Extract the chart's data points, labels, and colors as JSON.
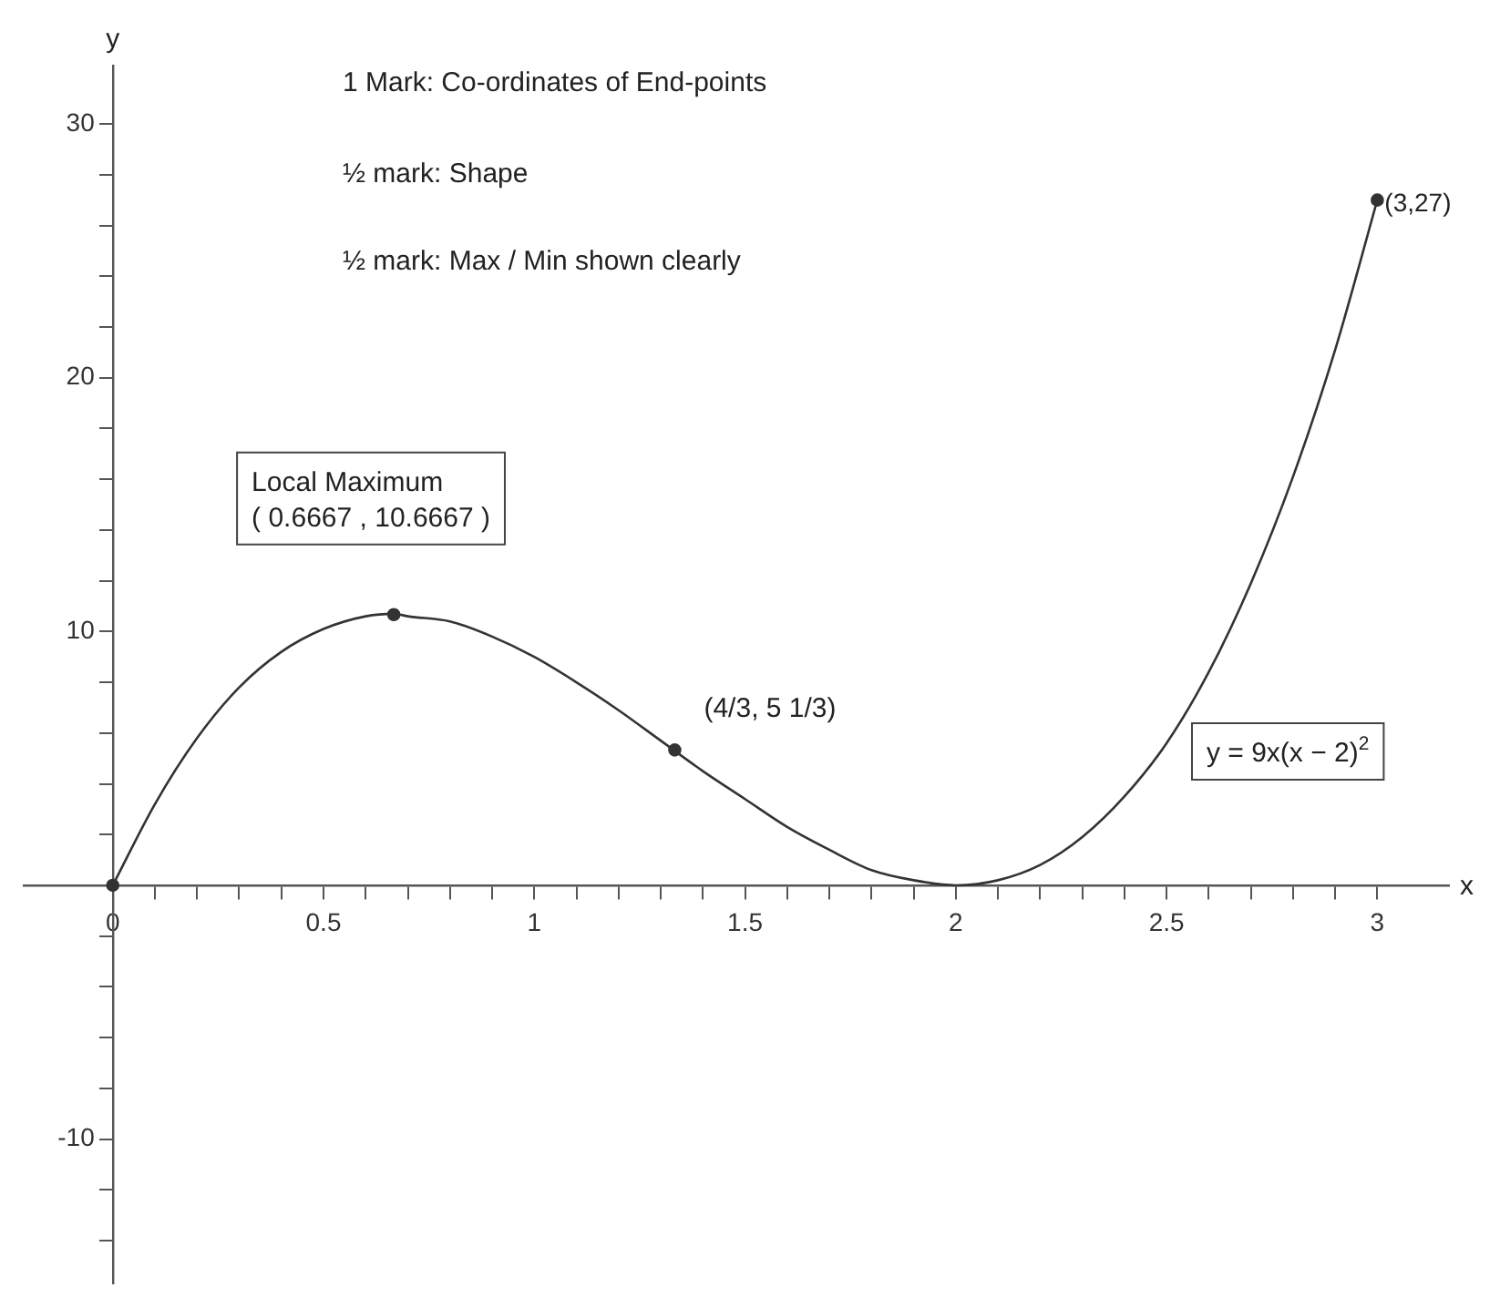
{
  "chart_data": {
    "type": "line",
    "xlabel": "x",
    "ylabel": "y",
    "xlim": [
      -0.21,
      3.17
    ],
    "ylim": [
      -15.7,
      32.3
    ],
    "xticks": [
      {
        "value": 0,
        "label": "0"
      },
      {
        "value": 0.1,
        "label": null
      },
      {
        "value": 0.2,
        "label": null
      },
      {
        "value": 0.3,
        "label": null
      },
      {
        "value": 0.4,
        "label": null
      },
      0.5,
      {
        "value": 0.6,
        "label": null
      },
      {
        "value": 0.7,
        "label": null
      },
      {
        "value": 0.8,
        "label": null
      },
      {
        "value": 0.9,
        "label": null
      },
      1,
      {
        "value": 1.1,
        "label": null
      },
      {
        "value": 1.2,
        "label": null
      },
      {
        "value": 1.3,
        "label": null
      },
      {
        "value": 1.4,
        "label": null
      },
      1.5,
      {
        "value": 1.6,
        "label": null
      },
      {
        "value": 1.7,
        "label": null
      },
      {
        "value": 1.8,
        "label": null
      },
      {
        "value": 1.9,
        "label": null
      },
      2,
      {
        "value": 2.1,
        "label": null
      },
      {
        "value": 2.2,
        "label": null
      },
      {
        "value": 2.3,
        "label": null
      },
      {
        "value": 2.4,
        "label": null
      },
      2.5,
      {
        "value": 2.6,
        "label": null
      },
      {
        "value": 2.7,
        "label": null
      },
      {
        "value": 2.8,
        "label": null
      },
      {
        "value": 2.9,
        "label": null
      },
      3
    ],
    "yticks": [
      {
        "value": -14,
        "label": null
      },
      {
        "value": -12,
        "label": null
      },
      -10,
      {
        "value": -8,
        "label": null
      },
      {
        "value": -6,
        "label": null
      },
      {
        "value": -4,
        "label": null
      },
      {
        "value": -2,
        "label": null
      },
      {
        "value": 2,
        "label": null
      },
      {
        "value": 4,
        "label": null
      },
      {
        "value": 6,
        "label": null
      },
      {
        "value": 8,
        "label": null
      },
      10,
      {
        "value": 12,
        "label": null
      },
      {
        "value": 14,
        "label": null
      },
      {
        "value": 16,
        "label": null
      },
      {
        "value": 18,
        "label": null
      },
      20,
      {
        "value": 22,
        "label": null
      },
      {
        "value": 24,
        "label": null
      },
      {
        "value": 26,
        "label": null
      },
      {
        "value": 28,
        "label": null
      },
      30
    ],
    "series": [
      {
        "type": "line",
        "color": "#333333",
        "marker": "none",
        "x": [
          0,
          0.1,
          0.2,
          0.3,
          0.4,
          0.5,
          0.6,
          0.6667,
          0.7,
          0.8,
          0.9,
          1,
          1.1,
          1.2,
          1.3,
          1.4,
          1.5,
          1.6,
          1.7,
          1.8,
          1.9,
          2,
          2.1,
          2.2,
          2.3,
          2.4,
          2.5,
          2.6,
          2.7,
          2.8,
          2.9,
          3
        ],
        "values": [
          0,
          3.2,
          5.8,
          7.8,
          9.2,
          10.1,
          10.6,
          10.7,
          10.6,
          10.4,
          9.8,
          9,
          8.0,
          6.9,
          5.7,
          4.5,
          3.4,
          2.3,
          1.4,
          0.6,
          0.2,
          0,
          0.2,
          0.8,
          1.9,
          3.5,
          5.6,
          8.4,
          11.9,
          16.1,
          21.1,
          27
        ]
      },
      {
        "type": "scatter",
        "color": "#333333",
        "marker": "circle",
        "x": [
          0,
          0.6667,
          1.3333,
          3
        ],
        "values": [
          0,
          10.6667,
          5.3333,
          27
        ]
      }
    ],
    "annotations": [
      "1 Mark: Co-ordinates of End-points",
      "½ mark: Shape",
      "½ mark: Max / Min shown clearly",
      {
        "text": "Local Maximum\n( 0.6667 , 10.6667 )",
        "x": 0.6667,
        "y": 10.6667
      },
      {
        "text": "(4/3, 5 1/3)",
        "x": 1.3333,
        "y": 5.3333
      },
      {
        "text": "(3,27)",
        "x": 3,
        "y": 27
      },
      "y = 9x(x − 2)$^{2}$"
    ]
  }
}
